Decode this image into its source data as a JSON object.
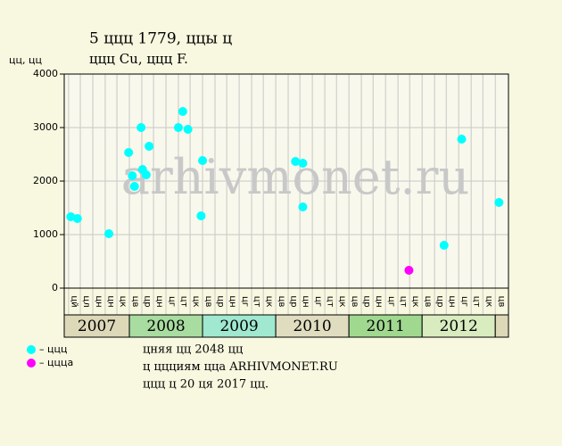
{
  "chart_data": {
    "type": "scatter",
    "title": "5 ццц 1779, ццы ц",
    "subtitle": "ццц Cu, ццц F.",
    "y_label": "цц, цц",
    "watermark": "arhivmonet.ru",
    "notes": [
      "цняя цц 2048 цц",
      "ц ццциям ццa ARHIVMONET.RU",
      "ццц ц 20 ця 2017 цц."
    ],
    "xlim": [
      2007.11,
      2013.18
    ],
    "ylim": [
      0,
      4000
    ],
    "yticks": [
      0,
      1000,
      2000,
      3000,
      4000
    ],
    "grid": true,
    "year_bands": [
      {
        "value": 2007,
        "label": "2007",
        "color": "#dcd8b8"
      },
      {
        "value": 2008,
        "label": "2008",
        "color": "#a8dca0"
      },
      {
        "value": 2009,
        "label": "2009",
        "color": "#a0e8d0"
      },
      {
        "value": 2010,
        "label": "2010",
        "color": "#e0dcc0"
      },
      {
        "value": 2011,
        "label": "2011",
        "color": "#a0d890"
      },
      {
        "value": 2012,
        "label": "2012",
        "color": "#d8ecc0"
      },
      {
        "value": 2013,
        "color": "#dcd8b8"
      }
    ],
    "month_ticks": [
      {
        "value": 2007.17,
        "label": "цй"
      },
      {
        "value": 2007.33,
        "label": "цл"
      },
      {
        "value": 2007.5,
        "label": "цн"
      },
      {
        "value": 2007.67,
        "label": "цн"
      },
      {
        "value": 2007.83,
        "label": "цк"
      },
      {
        "value": 2008.0,
        "label": "цв"
      },
      {
        "value": 2008.17,
        "label": "цр"
      },
      {
        "value": 2008.33,
        "label": "цн"
      },
      {
        "value": 2008.5,
        "label": "цг"
      },
      {
        "value": 2008.67,
        "label": "цт"
      },
      {
        "value": 2008.83,
        "label": "цк"
      },
      {
        "value": 2009.0,
        "label": "цв"
      },
      {
        "value": 2009.17,
        "label": "цр"
      },
      {
        "value": 2009.33,
        "label": "цн"
      },
      {
        "value": 2009.5,
        "label": "цг"
      },
      {
        "value": 2009.67,
        "label": "цт"
      },
      {
        "value": 2009.83,
        "label": "цк"
      },
      {
        "value": 2010.0,
        "label": "цв"
      },
      {
        "value": 2010.17,
        "label": "цр"
      },
      {
        "value": 2010.33,
        "label": "цн"
      },
      {
        "value": 2010.5,
        "label": "цг"
      },
      {
        "value": 2010.67,
        "label": "цт"
      },
      {
        "value": 2010.83,
        "label": "цк"
      },
      {
        "value": 2011.0,
        "label": "цв"
      },
      {
        "value": 2011.17,
        "label": "цр"
      },
      {
        "value": 2011.33,
        "label": "цн"
      },
      {
        "value": 2011.5,
        "label": "цг"
      },
      {
        "value": 2011.67,
        "label": "цт"
      },
      {
        "value": 2011.83,
        "label": "цк"
      },
      {
        "value": 2012.0,
        "label": "цв"
      },
      {
        "value": 2012.17,
        "label": "цр"
      },
      {
        "value": 2012.33,
        "label": "цн"
      },
      {
        "value": 2012.5,
        "label": "цг"
      },
      {
        "value": 2012.67,
        "label": "цт"
      },
      {
        "value": 2012.83,
        "label": "цк"
      },
      {
        "value": 2013.0,
        "label": "цв"
      }
    ],
    "series": [
      {
        "name": "– ццц",
        "color": "#00ffff",
        "x": [
          2007.2,
          2007.29,
          2007.72,
          2007.99,
          2008.04,
          2008.07,
          2008.16,
          2008.18,
          2008.23,
          2008.27,
          2008.67,
          2008.73,
          2008.8,
          2008.98,
          2009.0,
          2010.27,
          2010.37,
          2010.37,
          2012.3,
          2012.54,
          2013.05
        ],
        "values": [
          1333,
          1300,
          1017,
          2533,
          2100,
          1900,
          3000,
          2217,
          2117,
          2650,
          3000,
          3300,
          2967,
          1350,
          2383,
          2367,
          2333,
          1517,
          800,
          2783,
          1600
        ]
      },
      {
        "name": "– ццца",
        "color": "#ff00ff",
        "x": [
          2011.82
        ],
        "values": [
          333
        ]
      }
    ]
  }
}
